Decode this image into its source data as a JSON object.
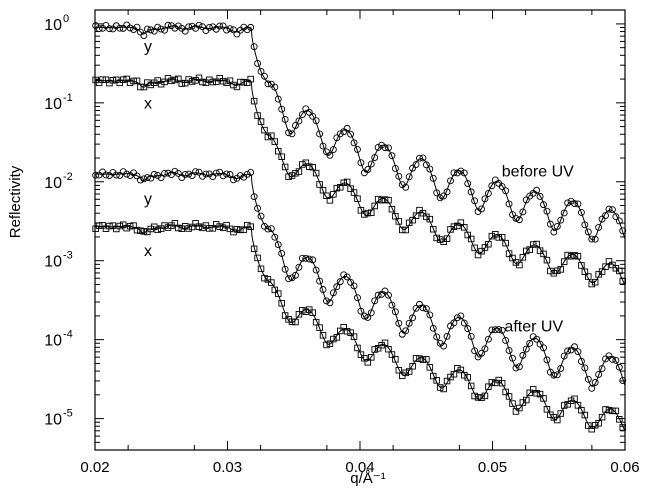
{
  "chart_data": {
    "type": "scatter",
    "title": "",
    "xlabel": "q/Å⁻¹",
    "ylabel": "Reflectivity",
    "xlim": [
      0.02,
      0.06
    ],
    "ylim": [
      4e-06,
      1.5
    ],
    "yscale": "log",
    "grid": false,
    "x_ticks": [
      0.02,
      0.03,
      0.04,
      0.05,
      0.06
    ],
    "x_tick_labels": [
      "0.02",
      "0.03",
      "0.04",
      "0.05",
      "0.06"
    ],
    "y_tick_labels": [
      {
        "value": 1,
        "base": "10",
        "exp": "0"
      },
      {
        "value": 0.1,
        "base": "10",
        "exp": "-1"
      },
      {
        "value": 0.01,
        "base": "10",
        "exp": "-2"
      },
      {
        "value": 0.001,
        "base": "10",
        "exp": "-3"
      },
      {
        "value": 0.0001,
        "base": "10",
        "exp": "-4"
      },
      {
        "value": 1e-05,
        "base": "10",
        "exp": "-5"
      }
    ],
    "annotations": [
      {
        "text": "y",
        "x": 0.0237,
        "y": 0.45
      },
      {
        "text": "x",
        "x": 0.0237,
        "y": 0.085
      },
      {
        "text": "before  UV",
        "x": 0.0507,
        "y": 0.0117
      },
      {
        "text": "y",
        "x": 0.0237,
        "y": 0.0052
      },
      {
        "text": "x",
        "x": 0.0237,
        "y": 0.00115
      },
      {
        "text": "after  UV",
        "x": 0.0509,
        "y": 0.000127
      }
    ],
    "series": [
      {
        "marker": "circle",
        "plateau": 0.9,
        "q_critical": 0.0318,
        "falloff": 0.045,
        "floor": 3.5e-06,
        "dip_depth": 0.4,
        "fringe_period": 0.00285,
        "fringe_phase": 0.0333,
        "fringe_depth": 0.63
      },
      {
        "marker": "square",
        "plateau": 0.19,
        "q_critical": 0.0318,
        "falloff": 0.045,
        "floor": 1e-06,
        "dip_depth": 0.4,
        "fringe_period": 0.00285,
        "fringe_phase": 0.0333,
        "fringe_depth": 0.5
      },
      {
        "marker": "circle",
        "plateau": 0.0125,
        "q_critical": 0.0318,
        "falloff": 0.045,
        "floor": 1.2e-07,
        "dip_depth": 0.4,
        "fringe_period": 0.00285,
        "fringe_phase": 0.0333,
        "fringe_depth": 0.63
      },
      {
        "marker": "square",
        "plateau": 0.0027,
        "q_critical": 0.0318,
        "falloff": 0.045,
        "floor": 5e-08,
        "dip_depth": 0.4,
        "fringe_period": 0.00285,
        "fringe_phase": 0.0333,
        "fringe_depth": 0.5
      }
    ]
  }
}
